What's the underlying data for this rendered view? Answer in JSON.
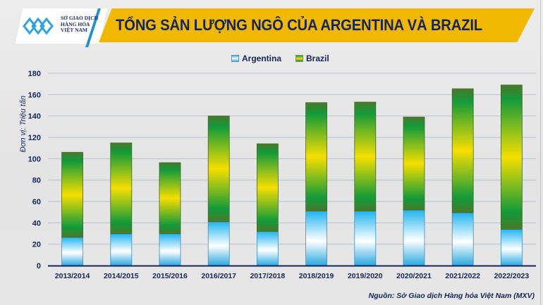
{
  "header": {
    "logo_lines": [
      "SỞ GIAO DỊCH",
      "HÀNG HÓA",
      "VIỆT NAM"
    ],
    "title": "TỔNG SẢN LƯỢNG NGÔ CỦA ARGENTINA VÀ BRAZIL"
  },
  "source": "Nguồn: Sở Giao dịch Hàng hóa Việt Nam (MXV)",
  "colors": {
    "title_band": "#f2b800",
    "title_text": "#14245c",
    "argentina": "#29b6f0",
    "brazil_dark": "#129a3a",
    "brazil_mid": "#f6de00"
  },
  "chart_data": {
    "type": "bar",
    "stacked": true,
    "title": "TỔNG SẢN LƯỢNG NGÔ CỦA ARGENTINA VÀ BRAZIL",
    "xlabel": "",
    "ylabel": "Đơn vị: Triệu tấn",
    "ylim": [
      0,
      180
    ],
    "yticks": [
      0,
      20,
      40,
      60,
      80,
      100,
      120,
      140,
      160,
      180
    ],
    "grid": true,
    "legend_position": "top-center",
    "categories": [
      "2013/2014",
      "2014/2015",
      "2015/2016",
      "2016/2017",
      "2017/2018",
      "2018/2019",
      "2019/2020",
      "2020/2021",
      "2021/2022",
      "2022/2023"
    ],
    "series": [
      {
        "name": "Argentina",
        "values": [
          26.5,
          29.8,
          29.8,
          41.0,
          32.0,
          51.0,
          51.0,
          52.0,
          49.5,
          34.0
        ]
      },
      {
        "name": "Brazil",
        "values": [
          79.5,
          85.0,
          66.5,
          99.0,
          82.0,
          101.5,
          102.0,
          87.0,
          116.0,
          135.0
        ]
      }
    ]
  }
}
